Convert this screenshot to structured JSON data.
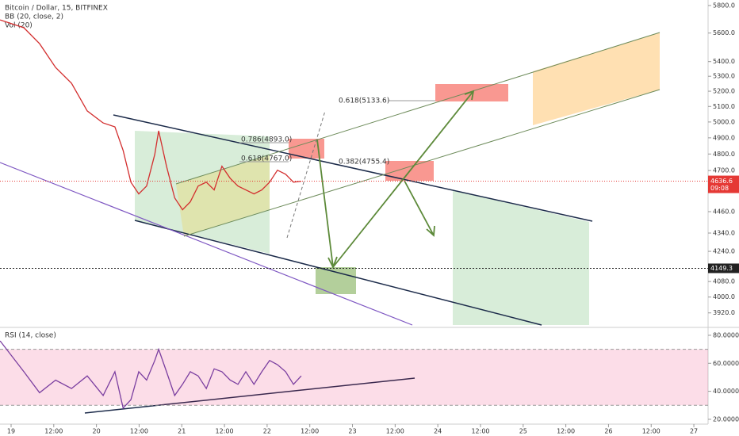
{
  "chart_data": [
    {
      "type": "line",
      "title": "Bitcoin / Dollar, 15, BITFINEX",
      "indicators": [
        "BB (20, close, 2)",
        "Vol (20)"
      ],
      "color": "#d32f2f",
      "log": true,
      "x": [
        -3.1,
        3.6,
        8.0,
        12.5,
        17.0,
        21.4,
        25.9,
        29.2,
        31.5,
        33.7,
        35.9,
        38.1,
        40.4,
        41.5,
        43.7,
        46.0,
        48.2,
        50.4,
        52.6,
        54.9,
        57.1,
        59.3,
        61.6,
        63.8,
        66.0,
        68.3,
        70.5,
        72.7,
        74.9,
        77.2,
        79.4,
        81.6
      ],
      "values": [
        5695,
        5638,
        5525,
        5360,
        5253,
        5071,
        4994,
        4969,
        4822,
        4631,
        4562,
        4608,
        4798,
        4944,
        4726,
        4539,
        4471,
        4516,
        4608,
        4631,
        4585,
        4726,
        4654,
        4608,
        4585,
        4562,
        4585,
        4631,
        4702,
        4678,
        4631,
        4636.6
      ],
      "xlim": [
        -3.12,
        196.0
      ],
      "xticks": [
        {
          "value": 0,
          "label": "19"
        },
        {
          "value": 12,
          "label": "12:00"
        },
        {
          "value": 24,
          "label": "20"
        },
        {
          "value": 36,
          "label": "12:00"
        },
        {
          "value": 48,
          "label": "21"
        },
        {
          "value": 60,
          "label": "12:00"
        },
        {
          "value": 72,
          "label": "22"
        },
        {
          "value": 84,
          "label": "12:00"
        },
        {
          "value": 96,
          "label": "23"
        },
        {
          "value": 108,
          "label": "12:00"
        },
        {
          "value": 120,
          "label": "24"
        },
        {
          "value": 132,
          "label": "12:00"
        },
        {
          "value": 144,
          "label": "25"
        },
        {
          "value": 156,
          "label": "12:00"
        },
        {
          "value": 168,
          "label": "26"
        },
        {
          "value": 180,
          "label": "12:00"
        },
        {
          "value": 192,
          "label": "27"
        }
      ],
      "ylim": [
        3860,
        5841
      ],
      "yticks": [
        {
          "value": 5800,
          "label": "5800.0"
        },
        {
          "value": 5600,
          "label": "5600.0"
        },
        {
          "value": 5400,
          "label": "5400.0"
        },
        {
          "value": 5300,
          "label": "5300.0"
        },
        {
          "value": 5200,
          "label": "5200.0"
        },
        {
          "value": 5100,
          "label": "5100.0"
        },
        {
          "value": 5000,
          "label": "5000.0"
        },
        {
          "value": 4900,
          "label": "4900.0"
        },
        {
          "value": 4800,
          "label": "4800.0"
        },
        {
          "value": 4700,
          "label": "4700.0"
        },
        {
          "value": 4460,
          "label": "4460.0"
        },
        {
          "value": 4340,
          "label": "4340.0"
        },
        {
          "value": 4240,
          "label": "4240.0"
        },
        {
          "value": 4080,
          "label": "4080.0"
        },
        {
          "value": 4000,
          "label": "4000.0"
        },
        {
          "value": 3920,
          "label": "3920.0"
        }
      ],
      "last_price": 4636.6,
      "countdown": "09:08",
      "level": 4149.3,
      "annotations": [
        "0.786(4893.0)",
        "0.618(4767.0)",
        "0.618(5133.6)",
        "0.382(4755.4)"
      ]
    },
    {
      "type": "line",
      "title": "RSI (14, close)",
      "color": "#7b3fa0",
      "x": [
        -3.1,
        3.6,
        8.0,
        12.5,
        17.0,
        21.4,
        25.9,
        29.2,
        31.5,
        33.7,
        35.9,
        38.1,
        40.4,
        41.5,
        43.7,
        46.0,
        48.2,
        50.4,
        52.6,
        54.9,
        57.1,
        59.3,
        61.6,
        63.8,
        66.0,
        68.3,
        70.5,
        72.7,
        74.9,
        77.2,
        79.4,
        81.6
      ],
      "values": [
        76,
        54,
        39,
        48,
        42,
        51,
        37,
        54,
        28,
        34,
        54,
        48,
        62,
        70,
        54,
        37,
        45,
        54,
        51,
        42,
        56,
        54,
        48,
        45,
        54,
        45,
        54,
        62,
        59,
        54,
        45,
        51
      ],
      "band": [
        30,
        70
      ],
      "ylim": [
        17.7,
        84.5
      ],
      "yticks": [
        {
          "value": 80,
          "label": "80.0000"
        },
        {
          "value": 60,
          "label": "60.0000"
        },
        {
          "value": 40,
          "label": "40.0000"
        },
        {
          "value": 20,
          "label": "20.0000"
        }
      ]
    }
  ]
}
